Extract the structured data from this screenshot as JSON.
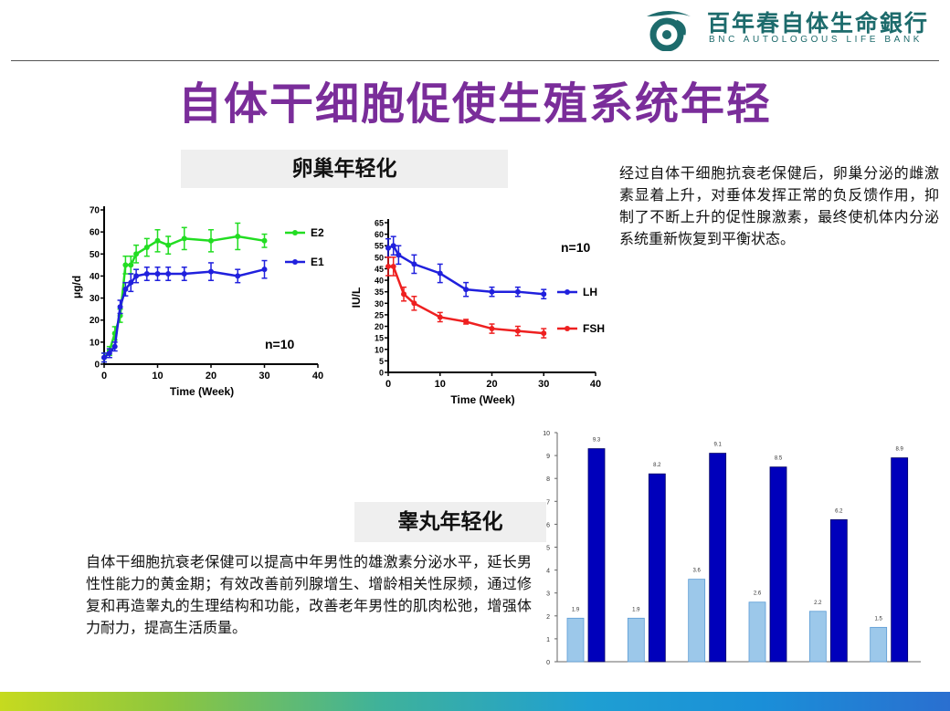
{
  "header": {
    "logo_cn": "百年春自体生命銀行",
    "logo_en": "BNC AUTOLOGOUS LIFE BANK",
    "colors": {
      "brand": "#1d6b6c",
      "title": "#7a2d9a"
    }
  },
  "page_title": "自体干细胞促使生殖系统年轻",
  "ovary": {
    "heading": "卵巢年轻化",
    "text": "经过自体干细胞抗衰老保健后，卵巢分泌的雌激素显着上升，对垂体发挥正常的负反馈作用，抑制了不断上升的促性腺激素，最终使机体内分泌系统重新恢复到平衡状态。"
  },
  "testis": {
    "heading": "睾丸年轻化",
    "text": "自体干细胞抗衰老保健可以提高中年男性的雄激素分泌水平，延长男性性能力的黄金期；有效改善前列腺增生、增龄相关性尿频，通过修复和再造睾丸的生理结构和功能，改善老年男性的肌肉松弛，增强体力耐力，提高生活质量。"
  },
  "chart_data": [
    {
      "type": "line",
      "xlabel": "Time (Week)",
      "ylabel": "μg/d",
      "xlim": [
        0,
        40
      ],
      "ylim": [
        0,
        70
      ],
      "xticks": [
        0,
        10,
        20,
        30,
        40
      ],
      "yticks": [
        0,
        10,
        20,
        30,
        40,
        50,
        60,
        70
      ],
      "annotation": "n=10",
      "legend_position": "right",
      "series": [
        {
          "name": "E2",
          "color": "#22dd22",
          "x": [
            0,
            1,
            2,
            3,
            4,
            5,
            6,
            8,
            10,
            12,
            15,
            20,
            25,
            30
          ],
          "y": [
            3,
            6,
            14,
            22,
            45,
            45,
            50,
            53,
            56,
            54,
            57,
            56,
            58,
            56
          ],
          "err": [
            2,
            2,
            3,
            3,
            4,
            4,
            4,
            4,
            5,
            4,
            5,
            5,
            6,
            3
          ]
        },
        {
          "name": "E1",
          "color": "#2020dd",
          "x": [
            0,
            1,
            2,
            3,
            4,
            5,
            6,
            8,
            10,
            12,
            15,
            20,
            25,
            30
          ],
          "y": [
            3,
            5,
            8,
            26,
            34,
            37,
            40,
            41,
            41,
            41,
            41,
            42,
            40,
            43
          ],
          "err": [
            2,
            2,
            2,
            3,
            3,
            4,
            3,
            3,
            3,
            3,
            3,
            4,
            3,
            4
          ]
        }
      ]
    },
    {
      "type": "line",
      "xlabel": "Time (Week)",
      "ylabel": "IU/L",
      "xlim": [
        0,
        40
      ],
      "ylim": [
        0,
        65
      ],
      "xticks": [
        0,
        10,
        20,
        30,
        40
      ],
      "yticks": [
        0,
        5,
        10,
        15,
        20,
        25,
        30,
        35,
        40,
        45,
        50,
        55,
        60,
        65
      ],
      "annotation": "n=10",
      "legend_position": "right",
      "series": [
        {
          "name": "LH",
          "color": "#2020dd",
          "x": [
            0,
            1,
            2,
            5,
            10,
            15,
            20,
            25,
            30
          ],
          "y": [
            54,
            55,
            51,
            47,
            43,
            36,
            35,
            35,
            34
          ],
          "err": [
            4,
            4,
            4,
            4,
            4,
            3,
            2,
            2,
            2
          ]
        },
        {
          "name": "FSH",
          "color": "#ee2020",
          "x": [
            0,
            1,
            3,
            5,
            10,
            15,
            20,
            25,
            30
          ],
          "y": [
            46,
            46,
            34,
            30,
            24,
            22,
            19,
            18,
            17
          ],
          "err": [
            4,
            4,
            3,
            3,
            2,
            1,
            2,
            2,
            2
          ]
        }
      ]
    },
    {
      "type": "bar",
      "ylim": [
        0,
        10
      ],
      "yticks": [
        0,
        1,
        2,
        3,
        4,
        5,
        6,
        7,
        8,
        9,
        10
      ],
      "series": [
        {
          "color": "#9cc8ea",
          "values": [
            1.9,
            1.9,
            3.6,
            2.6,
            2.2,
            1.5
          ]
        },
        {
          "color": "#0000bb",
          "values": [
            9.3,
            8.2,
            9.1,
            8.5,
            6.2,
            8.9
          ]
        }
      ]
    }
  ]
}
